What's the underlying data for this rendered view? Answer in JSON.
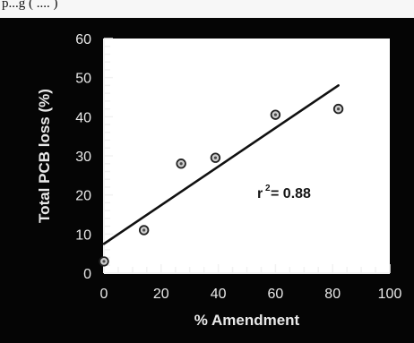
{
  "header_fragment": "p...g ( .... )",
  "chart_data": {
    "type": "scatter",
    "title": "",
    "xlabel": "% Amendment",
    "ylabel": "Total PCB loss  (%)",
    "xlim": [
      0,
      100
    ],
    "ylim": [
      0,
      60
    ],
    "x_ticks": [
      0,
      20,
      40,
      60,
      80,
      100
    ],
    "y_ticks": [
      0,
      10,
      20,
      30,
      40,
      50,
      60
    ],
    "points": [
      {
        "x": 0,
        "y": 3
      },
      {
        "x": 14,
        "y": 11
      },
      {
        "x": 27,
        "y": 28
      },
      {
        "x": 39,
        "y": 29.5
      },
      {
        "x": 60,
        "y": 40.5
      },
      {
        "x": 82,
        "y": 42
      }
    ],
    "trendline": {
      "start": {
        "x": 0,
        "y": 7.5
      },
      "end": {
        "x": 82,
        "y": 48
      }
    },
    "annotation": {
      "label": "r",
      "superscript": "2",
      "text": "= 0.88"
    },
    "grid": false,
    "legend": "none",
    "colors": {
      "outer_background": "#050505",
      "plot_background": "#ffffff",
      "axis_text": "#e9e9e9",
      "marker_fill": "#cfcfcf",
      "marker_stroke": "#222222",
      "line": "#111111"
    }
  }
}
